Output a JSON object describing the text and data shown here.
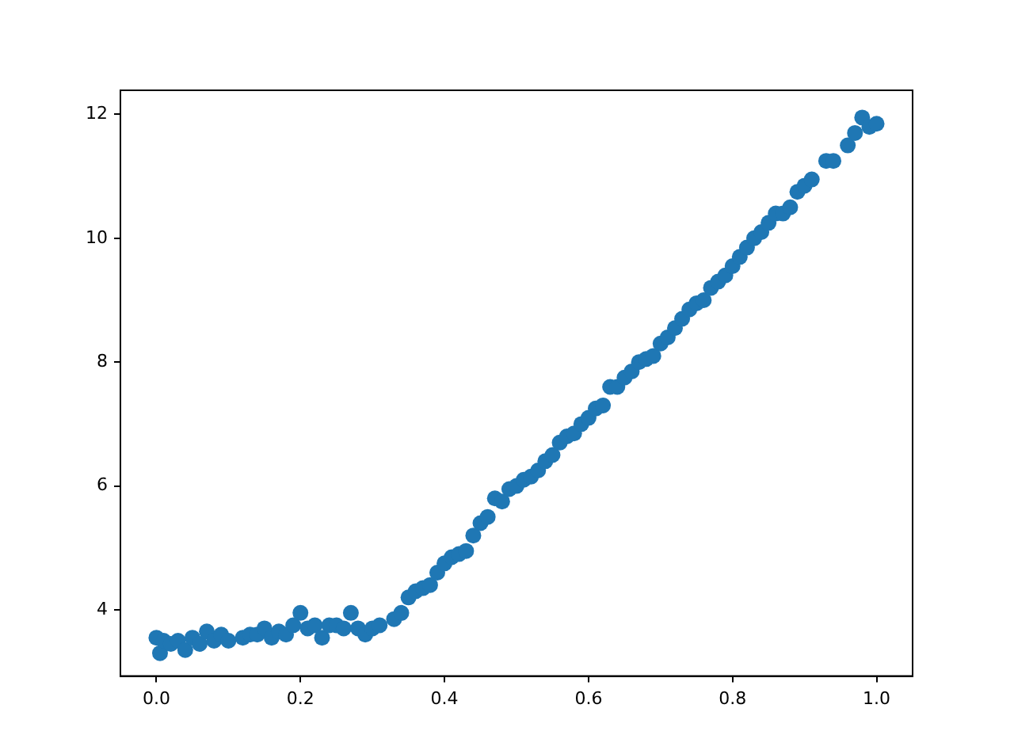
{
  "chart_data": {
    "type": "scatter",
    "marker": "circle",
    "grid": false,
    "xlim": [
      -0.05,
      1.05
    ],
    "ylim": [
      2.93,
      12.39
    ],
    "xticks": [
      {
        "value": 0,
        "label": "0.0"
      },
      {
        "value": 0.2,
        "label": "0.2"
      },
      {
        "value": 0.4,
        "label": "0.4"
      },
      {
        "value": 0.6,
        "label": "0.6"
      },
      {
        "value": 0.8,
        "label": "0.8"
      },
      {
        "value": 1,
        "label": "1.0"
      }
    ],
    "yticks": [
      4,
      6,
      8,
      10,
      12
    ],
    "series": [
      {
        "color": "#1f77b4",
        "x": [
          0.0,
          0.005,
          0.01,
          0.02,
          0.03,
          0.04,
          0.05,
          0.06,
          0.07,
          0.08,
          0.09,
          0.1,
          0.12,
          0.13,
          0.14,
          0.15,
          0.16,
          0.17,
          0.18,
          0.19,
          0.2,
          0.21,
          0.22,
          0.23,
          0.24,
          0.25,
          0.26,
          0.27,
          0.28,
          0.29,
          0.3,
          0.31,
          0.33,
          0.34,
          0.35,
          0.36,
          0.37,
          0.38,
          0.39,
          0.4,
          0.41,
          0.42,
          0.43,
          0.44,
          0.45,
          0.46,
          0.47,
          0.48,
          0.49,
          0.5,
          0.51,
          0.52,
          0.53,
          0.54,
          0.55,
          0.56,
          0.57,
          0.58,
          0.59,
          0.6,
          0.61,
          0.62,
          0.63,
          0.64,
          0.65,
          0.66,
          0.67,
          0.68,
          0.69,
          0.7,
          0.71,
          0.72,
          0.73,
          0.74,
          0.75,
          0.76,
          0.77,
          0.78,
          0.79,
          0.8,
          0.81,
          0.82,
          0.83,
          0.84,
          0.85,
          0.86,
          0.87,
          0.88,
          0.89,
          0.9,
          0.91,
          0.93,
          0.94,
          0.96,
          0.97,
          0.98,
          0.99,
          1.0
        ],
        "values": [
          3.55,
          3.3,
          3.5,
          3.45,
          3.5,
          3.35,
          3.55,
          3.45,
          3.65,
          3.5,
          3.6,
          3.5,
          3.55,
          3.6,
          3.6,
          3.7,
          3.55,
          3.65,
          3.6,
          3.75,
          3.95,
          3.7,
          3.75,
          3.55,
          3.75,
          3.75,
          3.7,
          3.95,
          3.7,
          3.6,
          3.7,
          3.75,
          3.85,
          3.95,
          4.2,
          4.3,
          4.35,
          4.4,
          4.6,
          4.75,
          4.85,
          4.9,
          4.95,
          5.2,
          5.4,
          5.5,
          5.8,
          5.75,
          5.95,
          6.0,
          6.1,
          6.15,
          6.25,
          6.4,
          6.5,
          6.7,
          6.8,
          6.85,
          7.0,
          7.1,
          7.25,
          7.3,
          7.6,
          7.6,
          7.75,
          7.85,
          8.0,
          8.05,
          8.1,
          8.3,
          8.4,
          8.55,
          8.7,
          8.85,
          8.95,
          9.0,
          9.2,
          9.3,
          9.4,
          9.55,
          9.7,
          9.85,
          10.0,
          10.1,
          10.25,
          10.4,
          10.4,
          10.5,
          10.75,
          10.85,
          10.95,
          11.25,
          11.25,
          11.5,
          11.7,
          11.95,
          11.8,
          11.85
        ]
      }
    ]
  }
}
